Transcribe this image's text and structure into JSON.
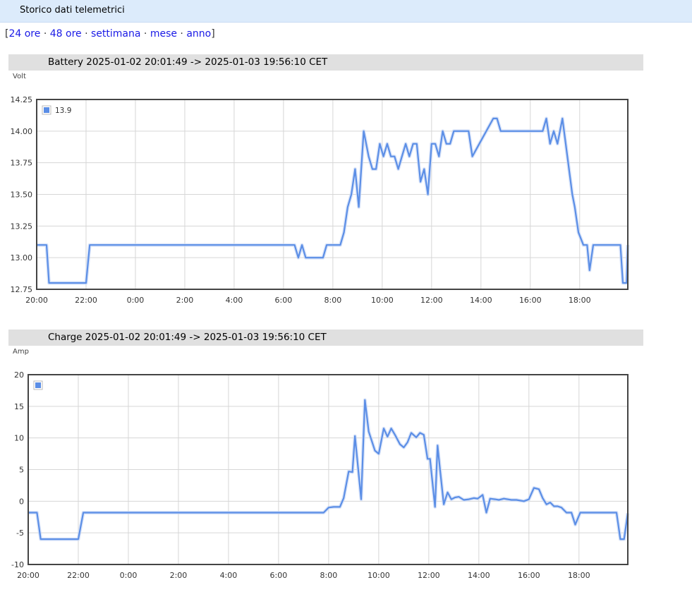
{
  "page": {
    "header_title": "Storico dati telemetrici",
    "range_links": [
      "24 ore",
      "48 ore",
      "settimana",
      "mese",
      "anno"
    ]
  },
  "chart_data": [
    {
      "type": "line",
      "title": "Battery 2025-01-02 20:01:49 -> 2025-01-03 19:56:10 CET",
      "ylabel": "Volt",
      "xlabel": "",
      "ylim": [
        12.75,
        14.25
      ],
      "yticks": [
        "12.75",
        "13.00",
        "13.25",
        "13.50",
        "13.75",
        "14.00",
        "14.25"
      ],
      "xlim": [
        20.0,
        43.95
      ],
      "xticks": [
        "20:00",
        "22:00",
        "0:00",
        "2:00",
        "4:00",
        "6:00",
        "8:00",
        "10:00",
        "12:00",
        "14:00",
        "16:00",
        "18:00"
      ],
      "grid": true,
      "legend_position": "top-left",
      "series": [
        {
          "name": "13.9",
          "color": "#5b8ee6",
          "x": [
            20.0,
            20.4,
            20.5,
            22.0,
            22.15,
            30.45,
            30.6,
            30.75,
            30.9,
            31.6,
            31.75,
            32.3,
            32.45,
            32.6,
            32.75,
            32.9,
            33.05,
            33.25,
            33.45,
            33.6,
            33.75,
            33.9,
            34.05,
            34.2,
            34.35,
            34.5,
            34.65,
            34.8,
            34.95,
            35.1,
            35.25,
            35.4,
            35.55,
            35.7,
            35.85,
            36.0,
            36.15,
            36.3,
            36.45,
            36.6,
            36.75,
            36.9,
            37.05,
            37.3,
            37.5,
            37.65,
            38.5,
            38.65,
            38.8,
            39.0,
            39.3,
            40.5,
            40.65,
            40.8,
            40.95,
            41.1,
            41.3,
            41.5,
            41.7,
            41.8,
            41.95,
            42.15,
            42.3,
            42.4,
            42.55,
            42.7,
            43.65,
            43.75,
            43.9,
            43.95
          ],
          "values": [
            13.1,
            13.1,
            12.8,
            12.8,
            13.1,
            13.1,
            13.0,
            13.1,
            13.0,
            13.0,
            13.1,
            13.1,
            13.2,
            13.4,
            13.5,
            13.7,
            13.4,
            14.0,
            13.8,
            13.7,
            13.7,
            13.9,
            13.8,
            13.9,
            13.8,
            13.8,
            13.7,
            13.8,
            13.9,
            13.8,
            13.9,
            13.9,
            13.6,
            13.7,
            13.5,
            13.9,
            13.9,
            13.8,
            14.0,
            13.9,
            13.9,
            14.0,
            14.0,
            14.0,
            14.0,
            13.8,
            14.1,
            14.1,
            14.0,
            14.0,
            14.0,
            14.0,
            14.1,
            13.9,
            14.0,
            13.9,
            14.1,
            13.8,
            13.5,
            13.4,
            13.2,
            13.1,
            13.1,
            12.9,
            13.1,
            13.1,
            13.1,
            12.8,
            12.8,
            13.1
          ]
        }
      ]
    },
    {
      "type": "line",
      "title": "Charge 2025-01-02 20:01:49 -> 2025-01-03 19:56:10 CET",
      "ylabel": "Amp",
      "xlabel": "",
      "ylim": [
        -10,
        20
      ],
      "yticks": [
        "-10",
        "-5",
        "0",
        "5",
        "10",
        "15",
        "20"
      ],
      "xlim": [
        20.0,
        43.95
      ],
      "xticks": [
        "20:00",
        "22:00",
        "0:00",
        "2:00",
        "4:00",
        "6:00",
        "8:00",
        "10:00",
        "12:00",
        "14:00",
        "16:00",
        "18:00"
      ],
      "grid": true,
      "legend_position": "top-left",
      "series": [
        {
          "name": "",
          "color": "#5b8ee6",
          "x": [
            20.0,
            20.35,
            20.5,
            22.0,
            22.2,
            31.8,
            32.0,
            32.2,
            32.45,
            32.6,
            32.8,
            32.95,
            33.05,
            33.3,
            33.45,
            33.6,
            33.85,
            34.0,
            34.2,
            34.35,
            34.5,
            34.65,
            34.85,
            35.0,
            35.15,
            35.3,
            35.5,
            35.65,
            35.8,
            35.95,
            36.05,
            36.25,
            36.35,
            36.45,
            36.6,
            36.75,
            36.9,
            37.05,
            37.2,
            37.4,
            37.6,
            37.8,
            37.95,
            38.15,
            38.3,
            38.45,
            38.65,
            38.8,
            39.0,
            39.3,
            39.5,
            39.8,
            40.0,
            40.2,
            40.4,
            40.55,
            40.7,
            40.85,
            41.0,
            41.15,
            41.3,
            41.5,
            41.7,
            41.85,
            42.05,
            42.25,
            42.4,
            43.5,
            43.65,
            43.8,
            43.95
          ],
          "values": [
            -1.8,
            -1.8,
            -6.0,
            -6.0,
            -1.8,
            -1.8,
            -1.0,
            -0.9,
            -0.9,
            0.5,
            4.7,
            4.6,
            10.3,
            0.3,
            16.0,
            11.0,
            8.0,
            7.5,
            11.5,
            10.2,
            11.5,
            10.5,
            9.0,
            8.5,
            9.3,
            10.8,
            10.1,
            10.8,
            10.5,
            6.7,
            6.7,
            -0.9,
            8.8,
            5.0,
            -0.5,
            1.4,
            0.3,
            0.6,
            0.7,
            0.2,
            0.3,
            0.5,
            0.4,
            1.0,
            -1.8,
            0.4,
            0.3,
            0.2,
            0.4,
            0.2,
            0.2,
            0.0,
            0.3,
            2.1,
            1.9,
            0.5,
            -0.5,
            -0.2,
            -0.8,
            -0.8,
            -1.0,
            -1.8,
            -1.8,
            -3.7,
            -1.8,
            -1.8,
            -1.8,
            -1.8,
            -6.0,
            -6.0,
            -1.9
          ]
        }
      ]
    }
  ]
}
